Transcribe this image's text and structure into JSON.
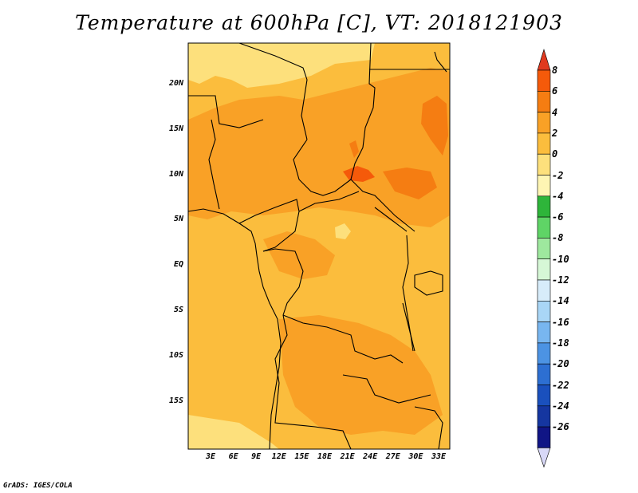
{
  "title": "Temperature at 600hPa [C], VT: 2018121903",
  "credit": "GrADS: IGES/COLA",
  "lat_labels": [
    "20N",
    "15N",
    "10N",
    "5N",
    "EQ",
    "5S",
    "10S",
    "15S"
  ],
  "lon_labels": [
    "3E",
    "6E",
    "9E",
    "12E",
    "15E",
    "18E",
    "21E",
    "24E",
    "27E",
    "30E",
    "33E"
  ],
  "colorbar": {
    "labels": [
      "8",
      "6",
      "4",
      "2",
      "0",
      "-2",
      "-4",
      "-6",
      "-8",
      "-10",
      "-12",
      "-14",
      "-16",
      "-18",
      "-20",
      "-22",
      "-24",
      "-26"
    ],
    "colors": [
      "#e0391f",
      "#f55a0a",
      "#f57d12",
      "#f9a126",
      "#fbbd3d",
      "#fde07c",
      "#fef5b3",
      "#2eb53a",
      "#5fd466",
      "#9ee89e",
      "#d6f7d6",
      "#d7ecfa",
      "#a9d6f6",
      "#78b6f0",
      "#4c93e3",
      "#2d6fd2",
      "#1a50bd",
      "#1536a0",
      "#101585",
      "#d8d8f7"
    ]
  },
  "colors": {
    "very_warm": "#f57d12",
    "warm": "#f9a126",
    "mild": "#fbbd3d",
    "cool": "#fde07c",
    "hot_spot": "#f55a0a"
  }
}
